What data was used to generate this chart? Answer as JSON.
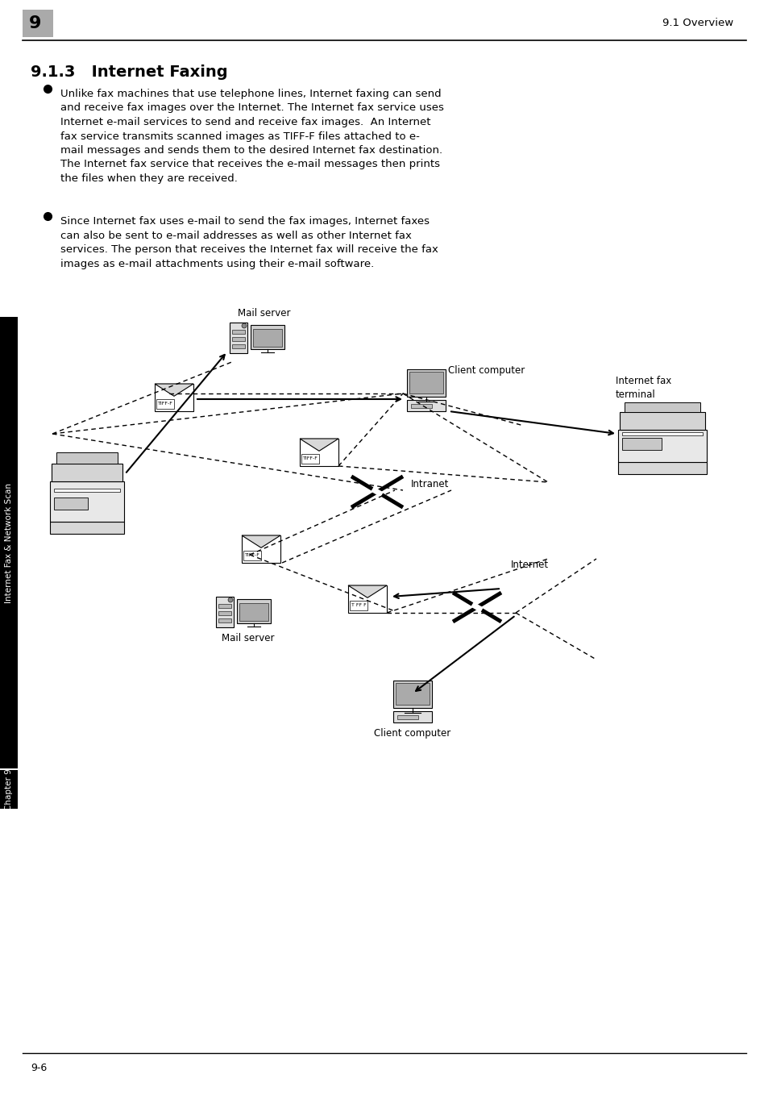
{
  "page_number_box": "9",
  "header_right": "9.1 Overview",
  "section_title": "9.1.3   Internet Faxing",
  "bullet1": "Unlike fax machines that use telephone lines, Internet faxing can send\nand receive fax images over the Internet. The Internet fax service uses\nInternet e-mail services to send and receive fax images.  An Internet\nfax service transmits scanned images as TIFF-F files attached to e-\nmail messages and sends them to the desired Internet fax destination.\nThe Internet fax service that receives the e-mail messages then prints\nthe files when they are received.",
  "bullet2": "Since Internet fax uses e-mail to send the fax images, Internet faxes\ncan also be sent to e-mail addresses as well as other Internet fax\nservices. The person that receives the Internet fax will receive the fax\nimages as e-mail attachments using their e-mail software.",
  "sidebar_text": "Internet Fax & Network Scan",
  "chapter_label": "Chapter 9",
  "footer_text": "9-6",
  "label_mail_server_top": "Mail server",
  "label_client_computer_top": "Client computer",
  "label_internet_fax_terminal": "Internet fax\nterminal",
  "label_intranet": "Intranet",
  "label_internet": "Internet",
  "label_mail_server_bottom": "Mail server",
  "label_client_computer_bottom": "Client computer",
  "bg_color": "#ffffff",
  "text_color": "#000000",
  "sidebar_bg": "#000000",
  "sidebar_text_color": "#ffffff",
  "header_box_color": "#aaaaaa",
  "font_size_section": 14,
  "font_size_body": 9.5,
  "font_size_header": 9.5,
  "font_size_footer": 9,
  "font_size_sidebar": 7.5,
  "font_size_diagram": 8.5
}
